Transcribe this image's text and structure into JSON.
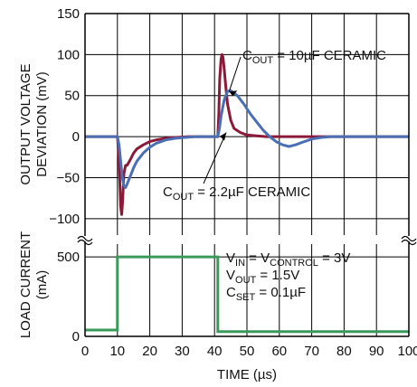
{
  "chart_data": [
    {
      "type": "line",
      "panel": "voltage",
      "ylabel_lines": [
        "OUTPUT VOLTAGE",
        "DEVIATION (mV)"
      ],
      "xlim": [
        0,
        100
      ],
      "ylim": [
        -120,
        150
      ],
      "y_ticks": [
        "150",
        "100",
        "50",
        "0",
        "−50",
        "−100"
      ],
      "grid": true,
      "series": [
        {
          "color": "#8b1a3a",
          "label_parts": [
            {
              "t": "C",
              "sub": false
            },
            {
              "t": "OUT",
              "sub": true
            },
            {
              "t": " = 2.2µF CERAMIC",
              "sub": false
            }
          ],
          "x": [
            0,
            10,
            10.3,
            10.7,
            11,
            11.3,
            11.6,
            12,
            12.5,
            13,
            14,
            15,
            16,
            18,
            20,
            22,
            25,
            28,
            32,
            36,
            40,
            41,
            41.3,
            41.6,
            42,
            42.3,
            42.6,
            43,
            43.5,
            44,
            45,
            46,
            48,
            50,
            53,
            56,
            60,
            65,
            70,
            80,
            90,
            100
          ],
          "y": [
            0,
            0,
            -15,
            -50,
            -85,
            -95,
            -80,
            -45,
            -35,
            -35,
            -28,
            -20,
            -15,
            -10,
            -6,
            -4,
            -2,
            -1,
            0,
            0,
            0,
            0,
            28,
            70,
            95,
            100,
            97,
            82,
            60,
            40,
            20,
            10,
            5,
            2,
            1,
            0,
            0,
            0,
            0,
            0,
            0,
            0
          ]
        },
        {
          "color": "#4a6fb5",
          "label_parts": [
            {
              "t": "C",
              "sub": false
            },
            {
              "t": "OUT",
              "sub": true
            },
            {
              "t": " = 10µF CERAMIC",
              "sub": false
            }
          ],
          "x": [
            0,
            10,
            10.5,
            11,
            11.5,
            12,
            12.5,
            13,
            14,
            15,
            16,
            18,
            20,
            22,
            25,
            28,
            31,
            34,
            37,
            40,
            41,
            41.5,
            42,
            43,
            44,
            45,
            47,
            49,
            51,
            53,
            55,
            57,
            59,
            61,
            63,
            65,
            67,
            70,
            73,
            76,
            80,
            85,
            90,
            100
          ],
          "y": [
            0,
            0,
            -10,
            -30,
            -50,
            -60,
            -62,
            -58,
            -48,
            -38,
            -30,
            -20,
            -13,
            -8,
            -4,
            -2,
            -1,
            0,
            0,
            0,
            0,
            10,
            25,
            45,
            55,
            56,
            50,
            40,
            28,
            18,
            8,
            0,
            -6,
            -10,
            -12,
            -10,
            -7,
            -3,
            -1,
            0,
            0,
            0,
            0,
            0
          ]
        }
      ]
    },
    {
      "type": "line",
      "panel": "current",
      "ylabel_lines": [
        "LOAD CURRENT",
        "(mA)"
      ],
      "xlabel": "TIME (µs)",
      "xlim": [
        0,
        100
      ],
      "ylim": [
        0,
        580
      ],
      "y_ticks": [
        "500",
        "0"
      ],
      "x_ticks": [
        "0",
        "10",
        "20",
        "30",
        "40",
        "50",
        "60",
        "70",
        "80",
        "90",
        "100"
      ],
      "grid": true,
      "series": [
        {
          "color": "#3a9a5a",
          "x": [
            0,
            10,
            10,
            41,
            41,
            100
          ],
          "y": [
            40,
            40,
            500,
            500,
            30,
            30
          ]
        }
      ]
    }
  ],
  "conditions": [
    [
      {
        "t": "V",
        "sub": false
      },
      {
        "t": "IN",
        "sub": true
      },
      {
        "t": " = V",
        "sub": false
      },
      {
        "t": "CONTROL",
        "sub": true
      },
      {
        "t": " = 3V",
        "sub": false
      }
    ],
    [
      {
        "t": "V",
        "sub": false
      },
      {
        "t": "OUT",
        "sub": true
      },
      {
        "t": " = 1.5V",
        "sub": false
      }
    ],
    [
      {
        "t": "C",
        "sub": false
      },
      {
        "t": "SET",
        "sub": true
      },
      {
        "t": " = 0.1µF",
        "sub": false
      }
    ]
  ]
}
